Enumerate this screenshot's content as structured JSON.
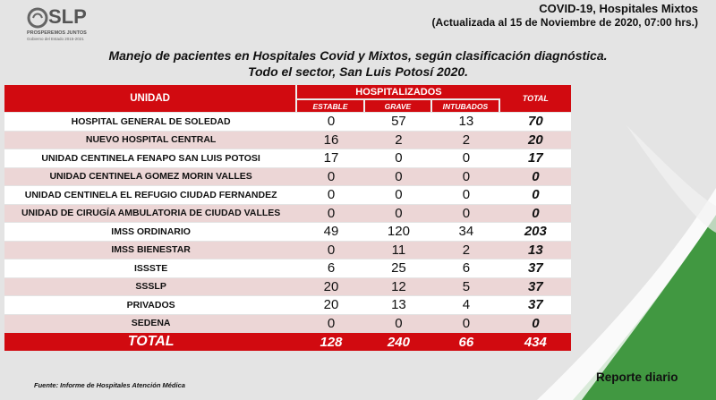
{
  "logo": {
    "word": "SLP",
    "tagline": "PROSPEREMOS JUNTOS",
    "subline": "Gobierno del Estado 2015-2021"
  },
  "header": {
    "title": "COVID-19, Hospitales Mixtos",
    "updated": "(Actualizada al 15 de Noviembre de 2020, 07:00 hrs.)"
  },
  "main_title": {
    "line1": "Manejo de pacientes en Hospitales Covid y Mixtos, según clasificación diagnóstica.",
    "line2": "Todo el sector, San Luis Potosí 2020."
  },
  "table": {
    "col_unidad": "UNIDAD",
    "col_hospitalizados": "HOSPITALIZADOS",
    "col_estable": "ESTABLE",
    "col_grave": "GRAVE",
    "col_intubados": "INTUBADOS",
    "col_total": "TOTAL",
    "rows": [
      {
        "unidad": "HOSPITAL GENERAL DE SOLEDAD",
        "estable": "0",
        "grave": "57",
        "intubados": "13",
        "total": "70"
      },
      {
        "unidad": "NUEVO HOSPITAL CENTRAL",
        "estable": "16",
        "grave": "2",
        "intubados": "2",
        "total": "20"
      },
      {
        "unidad": "UNIDAD CENTINELA FENAPO SAN LUIS POTOSI",
        "estable": "17",
        "grave": "0",
        "intubados": "0",
        "total": "17"
      },
      {
        "unidad": "UNIDAD CENTINELA GOMEZ MORIN VALLES",
        "estable": "0",
        "grave": "0",
        "intubados": "0",
        "total": "0"
      },
      {
        "unidad": "UNIDAD CENTINELA EL REFUGIO CIUDAD FERNANDEZ",
        "estable": "0",
        "grave": "0",
        "intubados": "0",
        "total": "0"
      },
      {
        "unidad": "UNIDAD DE CIRUGÍA AMBULATORIA DE CIUDAD VALLES",
        "estable": "0",
        "grave": "0",
        "intubados": "0",
        "total": "0"
      },
      {
        "unidad": "IMSS ORDINARIO",
        "estable": "49",
        "grave": "120",
        "intubados": "34",
        "total": "203"
      },
      {
        "unidad": "IMSS BIENESTAR",
        "estable": "0",
        "grave": "11",
        "intubados": "2",
        "total": "13"
      },
      {
        "unidad": "ISSSTE",
        "estable": "6",
        "grave": "25",
        "intubados": "6",
        "total": "37"
      },
      {
        "unidad": "SSSLP",
        "estable": "20",
        "grave": "12",
        "intubados": "5",
        "total": "37"
      },
      {
        "unidad": "PRIVADOS",
        "estable": "20",
        "grave": "13",
        "intubados": "4",
        "total": "37"
      },
      {
        "unidad": "SEDENA",
        "estable": "0",
        "grave": "0",
        "intubados": "0",
        "total": "0"
      }
    ],
    "total": {
      "label": "TOTAL",
      "estable": "128",
      "grave": "240",
      "intubados": "66",
      "total": "434"
    }
  },
  "footer": {
    "fuente": "Fuente: Informe de Hospitales Atención Médica",
    "reporte": "Reporte diario"
  },
  "colors": {
    "accent_red": "#d10a10",
    "row_alt": "#ecd6d6",
    "swoosh_green": "#2f8f2f"
  }
}
